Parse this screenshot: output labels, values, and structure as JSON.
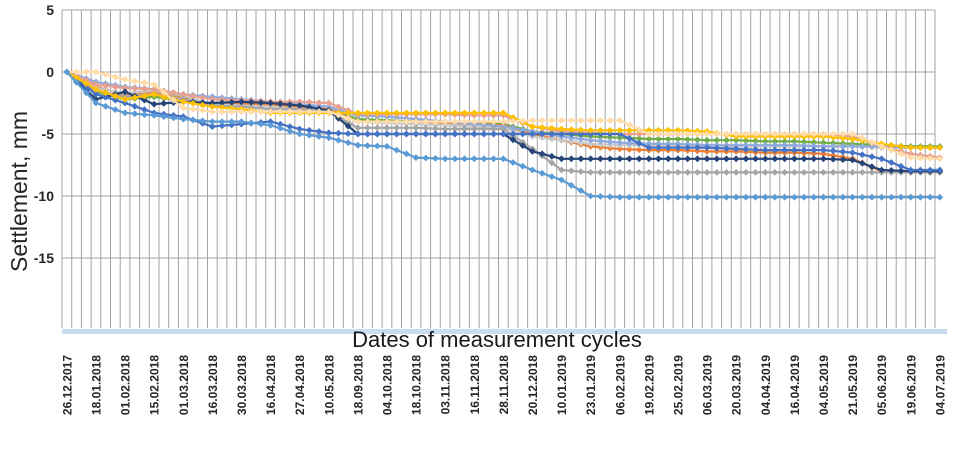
{
  "chart_data": {
    "type": "line",
    "title": "",
    "xlabel": "Dates of measurement cycles",
    "ylabel": "Settlement, mm",
    "ylim": [
      -20.5,
      5
    ],
    "yticks": [
      5,
      0,
      -5,
      -10,
      -15
    ],
    "grid": true,
    "legend_position": "none",
    "marker": "diamond",
    "axis_band_color": "#c9ddf0",
    "gridline_color": "#a3a3a3",
    "text_color": "#262626",
    "categories": [
      "26.12.2017",
      "18.01.2018",
      "01.02.2018",
      "15.02.2018",
      "01.03.2018",
      "16.03.2018",
      "30.03.2018",
      "16.04.2018",
      "27.04.2018",
      "10.05.2018",
      "18.09.2018",
      "04.10.2018",
      "18.10.2018",
      "03.11.2018",
      "16.11.2018",
      "28.11.2018",
      "20.12.2018",
      "10.01.2019",
      "23.01.2019",
      "06.02.2019",
      "19.02.2019",
      "25.02.2019",
      "06.03.2019",
      "20.03.2019",
      "04.04.2019",
      "16.04.2019",
      "04.05.2019",
      "21.05.2019",
      "05.06.2019",
      "19.06.2019",
      "04.07.2019"
    ],
    "series": [
      {
        "name": "green",
        "color": "#70AD47",
        "values": [
          0,
          -1.6,
          -2.2,
          -2.0,
          -2.3,
          -2.5,
          -2.5,
          -2.6,
          -2.8,
          -3.0,
          -3.8,
          -3.9,
          -4.0,
          -4.0,
          -4.1,
          -4.2,
          -4.8,
          -5.0,
          -5.2,
          -5.3,
          -5.4,
          -5.4,
          -5.5,
          -5.5,
          -5.6,
          -5.6,
          -5.7,
          -5.8,
          -5.9,
          -6.0,
          -6.0
        ]
      },
      {
        "name": "orange",
        "color": "#ED7D31",
        "values": [
          0,
          -1.2,
          -1.8,
          -1.6,
          -2.0,
          -2.6,
          -2.6,
          -2.6,
          -2.8,
          -3.0,
          -4.0,
          -4.0,
          -4.0,
          -4.1,
          -4.2,
          -4.3,
          -5.0,
          -5.5,
          -6.0,
          -6.2,
          -6.3,
          -6.3,
          -6.4,
          -6.4,
          -6.5,
          -6.5,
          -6.6,
          -7.0,
          -8.0,
          -8.1,
          -8.1
        ]
      },
      {
        "name": "light-gray",
        "color": "#C9C9C9",
        "values": [
          0,
          -1.3,
          -1.7,
          -1.5,
          -1.9,
          -2.6,
          -2.7,
          -2.8,
          -3.0,
          -3.1,
          -4.0,
          -4.1,
          -4.2,
          -4.3,
          -4.4,
          -4.5,
          -5.2,
          -5.5,
          -5.8,
          -5.9,
          -5.9,
          -5.9,
          -5.9,
          -6.0,
          -6.0,
          -6.0,
          -6.0,
          -6.0,
          -6.1,
          -6.1,
          -6.1
        ]
      },
      {
        "name": "periwinkle",
        "color": "#8FAADC",
        "values": [
          0,
          -0.8,
          -1.2,
          -1.4,
          -1.8,
          -2.0,
          -2.2,
          -2.4,
          -2.6,
          -2.8,
          -3.5,
          -3.6,
          -3.8,
          -4.0,
          -4.2,
          -4.4,
          -4.8,
          -5.2,
          -5.5,
          -5.7,
          -5.8,
          -5.8,
          -5.9,
          -5.9,
          -5.9,
          -5.9,
          -6.0,
          -6.0,
          -6.0,
          -6.1,
          -6.1
        ]
      },
      {
        "name": "salmon",
        "color": "#E8A091",
        "values": [
          0,
          -1.0,
          -1.3,
          -1.4,
          -1.8,
          -2.2,
          -2.3,
          -2.4,
          -2.4,
          -2.5,
          -3.4,
          -3.4,
          -3.4,
          -3.4,
          -3.5,
          -3.5,
          -4.4,
          -4.8,
          -4.9,
          -5.0,
          -5.0,
          -5.0,
          -5.0,
          -5.0,
          -5.0,
          -5.0,
          -5.0,
          -5.2,
          -6.0,
          -6.6,
          -6.9
        ]
      },
      {
        "name": "gray",
        "color": "#A5A5A5",
        "values": [
          0,
          -1.5,
          -2.0,
          -1.8,
          -2.2,
          -2.7,
          -2.8,
          -3.0,
          -3.0,
          -3.2,
          -4.5,
          -4.5,
          -4.5,
          -4.6,
          -4.6,
          -4.6,
          -6.2,
          -7.9,
          -8.1,
          -8.1,
          -8.1,
          -8.1,
          -8.1,
          -8.1,
          -8.1,
          -8.1,
          -8.1,
          -8.1,
          -8.1,
          -8.1,
          -8.1
        ]
      },
      {
        "name": "dark-blue",
        "color": "#264478",
        "values": [
          0,
          -2.2,
          -1.6,
          -2.6,
          -2.4,
          -2.5,
          -2.4,
          -2.5,
          -2.7,
          -3.1,
          -5.0,
          -5.0,
          -5.0,
          -5.0,
          -5.0,
          -5.0,
          -6.4,
          -7.0,
          -7.0,
          -7.0,
          -7.0,
          -7.0,
          -7.0,
          -7.0,
          -7.0,
          -7.0,
          -7.0,
          -7.1,
          -7.9,
          -8.0,
          -8.0
        ]
      },
      {
        "name": "blue",
        "color": "#4472C4",
        "values": [
          0,
          -1.8,
          -2.5,
          -3.3,
          -3.6,
          -4.4,
          -4.2,
          -4.0,
          -4.6,
          -4.9,
          -5.0,
          -5.0,
          -5.0,
          -5.0,
          -5.0,
          -5.0,
          -5.0,
          -5.0,
          -5.0,
          -5.0,
          -6.1,
          -6.1,
          -6.1,
          -6.2,
          -6.3,
          -6.3,
          -6.3,
          -6.5,
          -7.0,
          -7.9,
          -7.9
        ]
      },
      {
        "name": "gold",
        "color": "#FFC000",
        "values": [
          0,
          -1.4,
          -2.2,
          -1.8,
          -2.4,
          -2.8,
          -3.0,
          -3.3,
          -3.3,
          -3.3,
          -3.3,
          -3.3,
          -3.3,
          -3.3,
          -3.3,
          -3.3,
          -4.4,
          -4.6,
          -4.7,
          -4.7,
          -4.7,
          -4.7,
          -4.8,
          -5.2,
          -5.2,
          -5.2,
          -5.2,
          -5.4,
          -5.8,
          -6.1,
          -6.1
        ]
      },
      {
        "name": "peach",
        "color": "#FFDCA8",
        "values": [
          0,
          0,
          -0.6,
          -1.0,
          -2.9,
          -3.2,
          -3.2,
          -3.2,
          -3.2,
          -3.2,
          -4.0,
          -4.0,
          -4.0,
          -4.0,
          -4.0,
          -4.0,
          -3.9,
          -3.9,
          -3.9,
          -3.9,
          -5.0,
          -5.0,
          -5.0,
          -5.0,
          -5.0,
          -5.0,
          -5.0,
          -5.0,
          -6.0,
          -6.9,
          -7.0
        ]
      },
      {
        "name": "light-blue",
        "color": "#5B9BD5",
        "values": [
          0,
          -2.5,
          -3.3,
          -3.5,
          -3.8,
          -4.0,
          -4.0,
          -4.3,
          -5.0,
          -5.3,
          -5.9,
          -6.0,
          -6.9,
          -7.0,
          -7.0,
          -7.0,
          -7.9,
          -8.7,
          -10.0,
          -10.1,
          -10.1,
          -10.1,
          -10.1,
          -10.1,
          -10.1,
          -10.1,
          -10.1,
          -10.1,
          -10.1,
          -10.1,
          -10.1
        ]
      }
    ]
  }
}
